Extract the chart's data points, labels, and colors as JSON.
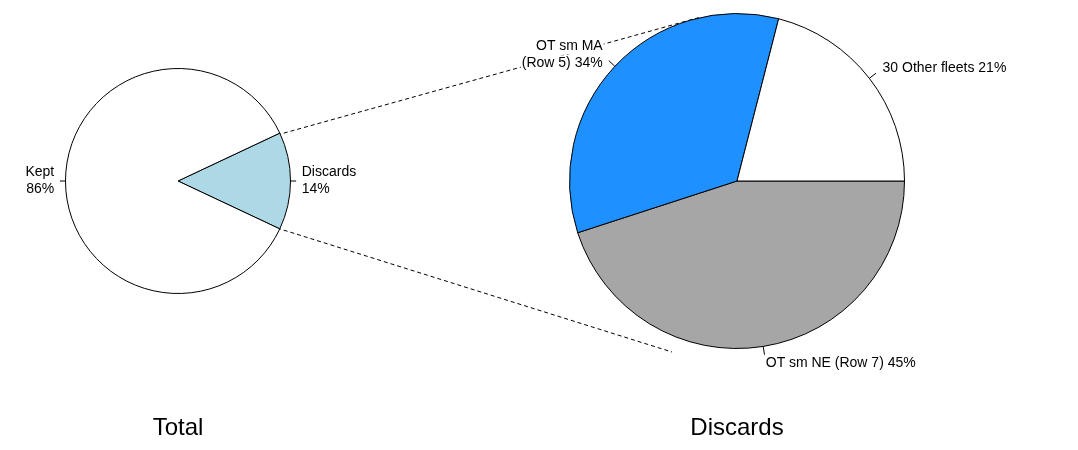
{
  "chart_data": [
    {
      "type": "pie",
      "title": "Total",
      "categories": [
        "Discards",
        "Kept"
      ],
      "values": [
        14,
        86
      ],
      "colors": [
        "#add8e6",
        "#ffffff"
      ],
      "value_labels": [
        "14%",
        "86%"
      ],
      "legend": false
    },
    {
      "type": "pie",
      "title": "Discards",
      "categories": [
        "OT sm NE (Row 7)",
        "OT sm MA (Row 5)",
        "30 Other fleets"
      ],
      "values": [
        45,
        34,
        21
      ],
      "colors": [
        "#a6a6a6",
        "#1e90ff",
        "#ffffff"
      ],
      "value_labels": [
        "45%",
        "34%",
        "21%"
      ],
      "legend": false
    }
  ]
}
